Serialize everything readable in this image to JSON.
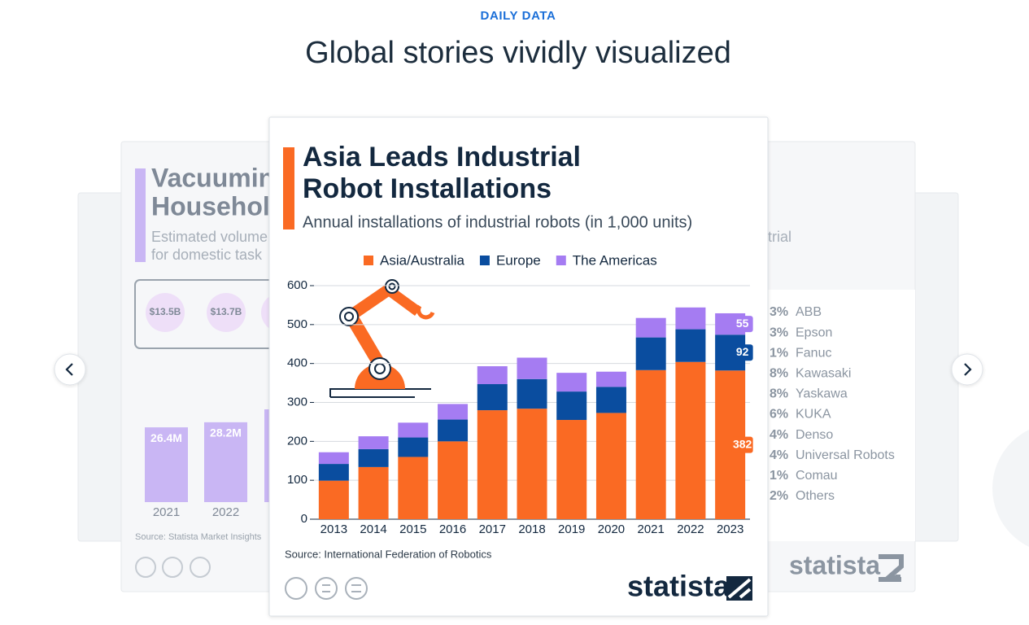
{
  "header": {
    "eyebrow": "DAILY DATA",
    "title": "Global stories vividly visualized"
  },
  "cards": {
    "left": {
      "title_lines": [
        "Vacuumin",
        "Househol"
      ],
      "subtitle_lines": [
        "Estimated volume",
        "for domestic task"
      ],
      "stats": [
        "$13.5B",
        "$13.7B"
      ],
      "bars": {
        "categories": [
          "2021",
          "2022"
        ],
        "values": [
          26.4,
          28.2
        ],
        "value_labels": [
          "26.4M",
          "28.2M"
        ]
      },
      "source": "Source: Statista Market Insights"
    },
    "right": {
      "subtitle_fragment": "trial",
      "list": [
        {
          "share": "3%",
          "name": "ABB"
        },
        {
          "share": "3%",
          "name": "Epson"
        },
        {
          "share": "1%",
          "name": "Fanuc"
        },
        {
          "share": "8%",
          "name": "Kawasaki"
        },
        {
          "share": "8%",
          "name": "Yaskawa"
        },
        {
          "share": "6%",
          "name": "KUKA"
        },
        {
          "share": "4%",
          "name": "Denso"
        },
        {
          "share": "4%",
          "name": "Universal Robots"
        },
        {
          "share": "1%",
          "name": "Comau"
        },
        {
          "share": "2%",
          "name": "Others"
        }
      ],
      "logo": "statista"
    }
  },
  "chart_data": {
    "type": "stacked-bar",
    "title": [
      "Asia Leads Industrial",
      "Robot Installations"
    ],
    "subtitle": "Annual installations of industrial robots (in 1,000 units)",
    "categories": [
      "2013",
      "2014",
      "2015",
      "2016",
      "2017",
      "2018",
      "2019",
      "2020",
      "2021",
      "2022",
      "2023"
    ],
    "series": [
      {
        "name": "Asia/Australia",
        "color": "#fa6a23",
        "values": [
          99,
          134,
          160,
          200,
          280,
          284,
          255,
          273,
          383,
          404,
          382
        ]
      },
      {
        "name": "Europe",
        "color": "#0a4d9f",
        "values": [
          43,
          46,
          50,
          56,
          67,
          76,
          73,
          67,
          84,
          84,
          92
        ]
      },
      {
        "name": "The Americas",
        "color": "#a57cf2",
        "values": [
          30,
          33,
          38,
          40,
          46,
          55,
          48,
          39,
          50,
          56,
          55
        ]
      }
    ],
    "ylim": [
      0,
      600
    ],
    "yticks": [
      0,
      100,
      200,
      300,
      400,
      500,
      600
    ],
    "grid": true,
    "data_labels": "last",
    "source": "Source: International Federation of Robotics",
    "logo": "statista"
  }
}
